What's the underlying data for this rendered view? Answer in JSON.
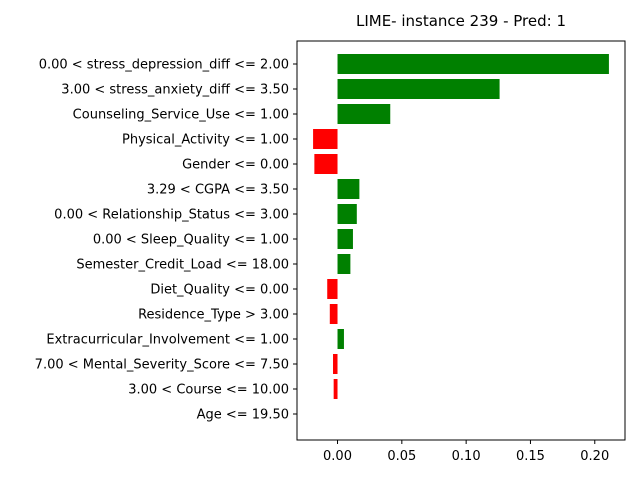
{
  "chart_data": {
    "type": "bar",
    "orientation": "horizontal",
    "title": "LIME- instance 239 - Pred: 1",
    "xlabel": "",
    "ylabel": "",
    "xlim": [
      -0.0315,
      0.2235
    ],
    "xticks": [
      0.0,
      0.05,
      0.1,
      0.15,
      0.2
    ],
    "xtick_labels": [
      "0.00",
      "0.05",
      "0.10",
      "0.15",
      "0.20"
    ],
    "grid": false,
    "legend": "none",
    "colors": {
      "positive": "#008000",
      "negative": "#ff0000"
    },
    "categories": [
      "0.00 < stress_depression_diff <= 2.00",
      "3.00 < stress_anxiety_diff <= 3.50",
      "Counseling_Service_Use <= 1.00",
      "Physical_Activity <= 1.00",
      "Gender <= 0.00",
      "3.29 < CGPA <= 3.50",
      "0.00 < Relationship_Status <= 3.00",
      "0.00 < Sleep_Quality <= 1.00",
      "Semester_Credit_Load <= 18.00",
      "Diet_Quality <= 0.00",
      "Residence_Type > 3.00",
      "Extracurricular_Involvement <= 1.00",
      "7.00 < Mental_Severity_Score <= 7.50",
      "3.00 < Course <= 10.00",
      "Age <= 19.50"
    ],
    "values": [
      0.211,
      0.126,
      0.041,
      -0.019,
      -0.018,
      0.017,
      0.015,
      0.012,
      0.01,
      -0.008,
      -0.006,
      0.005,
      -0.0035,
      -0.003,
      0.0
    ]
  }
}
